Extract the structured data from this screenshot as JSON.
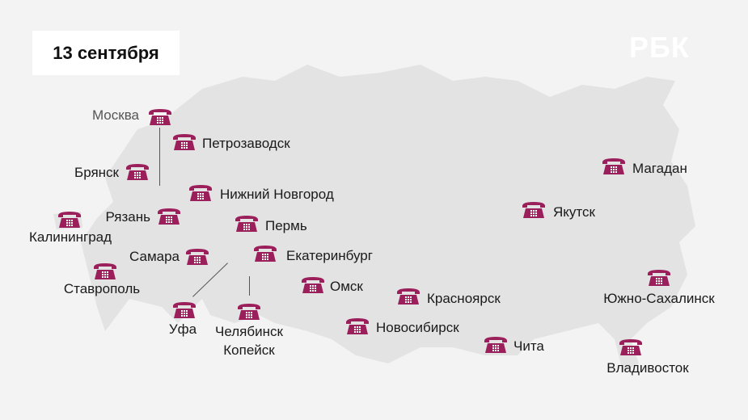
{
  "title": "13 сентября",
  "logo": "РБК",
  "colors": {
    "phone": "#9b1f5a",
    "map": "#e3e3e3",
    "background": "#f3f3f3"
  },
  "icon": "telephone-icon",
  "cities": [
    {
      "name": "Москва"
    },
    {
      "name": "Петрозаводск"
    },
    {
      "name": "Брянск"
    },
    {
      "name": "Нижний Новгород"
    },
    {
      "name": "Калининград"
    },
    {
      "name": "Рязань"
    },
    {
      "name": "Пермь"
    },
    {
      "name": "Самара"
    },
    {
      "name": "Екатеринбург"
    },
    {
      "name": "Ставрополь"
    },
    {
      "name": "Омск"
    },
    {
      "name": "Уфа"
    },
    {
      "name": "Челябинск",
      "name2": "Копейск"
    },
    {
      "name": "Красноярск"
    },
    {
      "name": "Новосибирск"
    },
    {
      "name": "Чита"
    },
    {
      "name": "Якутск"
    },
    {
      "name": "Магадан"
    },
    {
      "name": "Южно-Сахалинск"
    },
    {
      "name": "Владивосток"
    }
  ]
}
